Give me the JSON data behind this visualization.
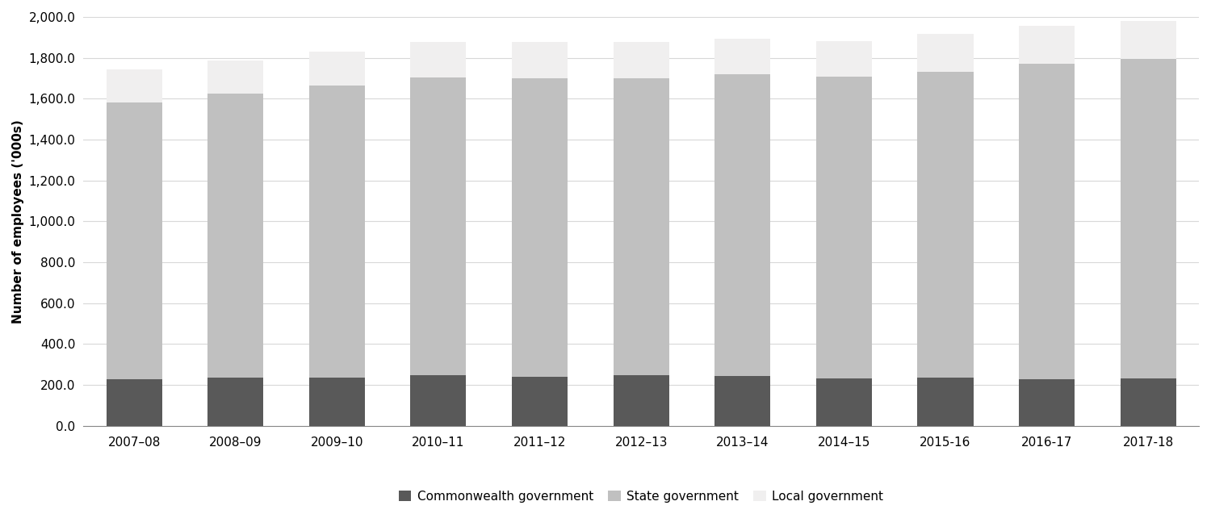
{
  "categories": [
    "2007–08",
    "2008–09",
    "2009–10",
    "2010–11",
    "2011–12",
    "2012–13",
    "2013–14",
    "2014–15",
    "2015-16",
    "2016-17",
    "2017-18"
  ],
  "commonwealth": [
    230,
    237,
    238,
    248,
    242,
    247,
    245,
    232,
    237,
    230,
    231
  ],
  "state": [
    1350,
    1390,
    1425,
    1455,
    1460,
    1455,
    1475,
    1475,
    1495,
    1540,
    1565
  ],
  "local": [
    163,
    160,
    168,
    175,
    175,
    175,
    175,
    175,
    185,
    185,
    185
  ],
  "commonwealth_color": "#595959",
  "state_color": "#c0c0c0",
  "local_color": "#f0efef",
  "ylabel": "Number of employees ('000s)",
  "ylim": [
    0,
    2000
  ],
  "yticks": [
    0,
    200,
    400,
    600,
    800,
    1000,
    1200,
    1400,
    1600,
    1800,
    2000
  ],
  "legend_labels": [
    "Commonwealth government",
    "State government",
    "Local government"
  ],
  "background_color": "#ffffff",
  "bar_width": 0.55,
  "grid_color": "#d8d8d8",
  "spine_color": "#888888",
  "tick_fontsize": 11,
  "ylabel_fontsize": 11
}
